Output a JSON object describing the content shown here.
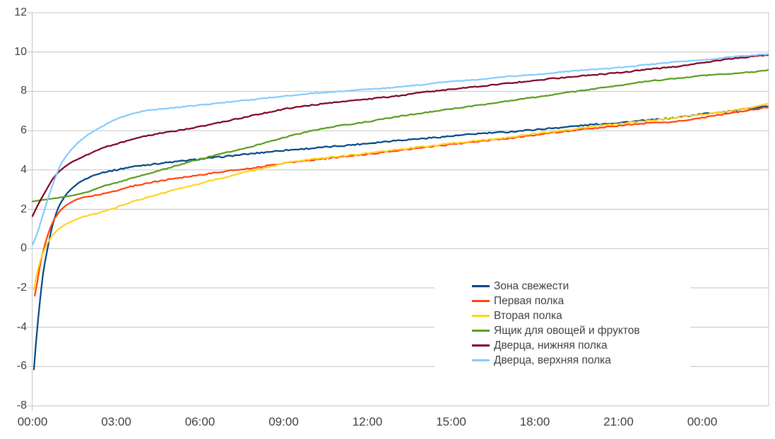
{
  "chart_data": {
    "type": "line",
    "title": "",
    "xlabel": "",
    "ylabel": "",
    "ylim": [
      -8,
      12
    ],
    "y_ticks": [
      12,
      10,
      8,
      6,
      4,
      2,
      0,
      -2,
      -4,
      -6,
      -8
    ],
    "x_tick_labels": [
      "00:00",
      "03:00",
      "06:00",
      "09:00",
      "12:00",
      "15:00",
      "18:00",
      "21:00",
      "00:00"
    ],
    "x_tick_hours": [
      0,
      3,
      6,
      9,
      12,
      15,
      18,
      21,
      24
    ],
    "x_range_hours": [
      0,
      26.35
    ],
    "grid": "horizontal",
    "grid_color": "#c3c3c3",
    "label_color": "#3f3f3f",
    "background": "#ffffff",
    "legend_position": "inside-right-middle",
    "series": [
      {
        "name": "Зона свежести",
        "color": "#004586",
        "points": [
          [
            0.05,
            -6.15
          ],
          [
            0.1,
            -5.2
          ],
          [
            0.2,
            -3.6
          ],
          [
            0.3,
            -2.2
          ],
          [
            0.4,
            -1.0
          ],
          [
            0.5,
            -0.3
          ],
          [
            0.6,
            0.45
          ],
          [
            0.7,
            1.1
          ],
          [
            0.8,
            1.6
          ],
          [
            0.9,
            2.0
          ],
          [
            1.0,
            2.3
          ],
          [
            1.2,
            2.75
          ],
          [
            1.4,
            3.05
          ],
          [
            1.7,
            3.4
          ],
          [
            2.0,
            3.6
          ],
          [
            2.3,
            3.8
          ],
          [
            2.6,
            3.9
          ],
          [
            3.0,
            4.0
          ],
          [
            3.5,
            4.15
          ],
          [
            4.0,
            4.25
          ],
          [
            5.0,
            4.4
          ],
          [
            6.0,
            4.55
          ],
          [
            7.0,
            4.7
          ],
          [
            8.0,
            4.85
          ],
          [
            9.0,
            5.0
          ],
          [
            10.0,
            5.1
          ],
          [
            11.0,
            5.22
          ],
          [
            12.0,
            5.35
          ],
          [
            13.0,
            5.5
          ],
          [
            14.0,
            5.6
          ],
          [
            15.0,
            5.72
          ],
          [
            16.0,
            5.85
          ],
          [
            17.0,
            5.93
          ],
          [
            18.0,
            6.05
          ],
          [
            19.0,
            6.17
          ],
          [
            20.0,
            6.3
          ],
          [
            21.0,
            6.4
          ],
          [
            22.0,
            6.52
          ],
          [
            23.0,
            6.65
          ],
          [
            24.0,
            6.85
          ],
          [
            25.0,
            7.0
          ],
          [
            26.0,
            7.18
          ],
          [
            26.35,
            7.25
          ]
        ]
      },
      {
        "name": "Первая полка",
        "color": "#FF420E",
        "points": [
          [
            0.08,
            -2.4
          ],
          [
            0.15,
            -1.9
          ],
          [
            0.25,
            -1.0
          ],
          [
            0.35,
            -0.3
          ],
          [
            0.5,
            0.5
          ],
          [
            0.65,
            1.1
          ],
          [
            0.8,
            1.55
          ],
          [
            1.0,
            1.95
          ],
          [
            1.2,
            2.2
          ],
          [
            1.5,
            2.45
          ],
          [
            1.8,
            2.6
          ],
          [
            2.2,
            2.7
          ],
          [
            2.6,
            2.8
          ],
          [
            3.0,
            2.95
          ],
          [
            3.5,
            3.15
          ],
          [
            4.0,
            3.3
          ],
          [
            5.0,
            3.55
          ],
          [
            6.0,
            3.75
          ],
          [
            7.0,
            3.95
          ],
          [
            8.0,
            4.12
          ],
          [
            9.0,
            4.35
          ],
          [
            10.0,
            4.5
          ],
          [
            11.0,
            4.65
          ],
          [
            12.0,
            4.8
          ],
          [
            13.0,
            4.97
          ],
          [
            14.0,
            5.13
          ],
          [
            15.0,
            5.3
          ],
          [
            16.0,
            5.45
          ],
          [
            17.0,
            5.6
          ],
          [
            18.0,
            5.78
          ],
          [
            19.0,
            5.95
          ],
          [
            20.0,
            6.1
          ],
          [
            21.0,
            6.25
          ],
          [
            22.0,
            6.38
          ],
          [
            23.0,
            6.45
          ],
          [
            24.0,
            6.65
          ],
          [
            25.0,
            6.9
          ],
          [
            26.0,
            7.1
          ],
          [
            26.35,
            7.2
          ]
        ]
      },
      {
        "name": "Вторая полка",
        "color": "#FFD320",
        "points": [
          [
            0.05,
            -2.1
          ],
          [
            0.15,
            -1.3
          ],
          [
            0.3,
            -0.5
          ],
          [
            0.5,
            0.2
          ],
          [
            0.7,
            0.65
          ],
          [
            0.9,
            0.95
          ],
          [
            1.2,
            1.25
          ],
          [
            1.5,
            1.45
          ],
          [
            1.8,
            1.6
          ],
          [
            2.2,
            1.75
          ],
          [
            2.6,
            1.9
          ],
          [
            3.0,
            2.1
          ],
          [
            3.5,
            2.35
          ],
          [
            4.0,
            2.55
          ],
          [
            4.5,
            2.75
          ],
          [
            5.0,
            2.95
          ],
          [
            5.5,
            3.15
          ],
          [
            6.0,
            3.3
          ],
          [
            6.5,
            3.5
          ],
          [
            7.0,
            3.65
          ],
          [
            7.5,
            3.85
          ],
          [
            8.0,
            4.0
          ],
          [
            8.5,
            4.15
          ],
          [
            9.0,
            4.35
          ],
          [
            10.0,
            4.55
          ],
          [
            11.0,
            4.7
          ],
          [
            12.0,
            4.85
          ],
          [
            13.0,
            5.02
          ],
          [
            14.0,
            5.18
          ],
          [
            15.0,
            5.35
          ],
          [
            16.0,
            5.5
          ],
          [
            17.0,
            5.65
          ],
          [
            18.0,
            5.85
          ],
          [
            19.0,
            6.0
          ],
          [
            20.0,
            6.2
          ],
          [
            21.0,
            6.35
          ],
          [
            22.0,
            6.5
          ],
          [
            23.0,
            6.65
          ],
          [
            24.0,
            6.8
          ],
          [
            25.0,
            7.0
          ],
          [
            26.0,
            7.25
          ],
          [
            26.35,
            7.35
          ]
        ]
      },
      {
        "name": "Ящик для овощей и фруктов",
        "color": "#579D1C",
        "points": [
          [
            0,
            2.4
          ],
          [
            0.5,
            2.5
          ],
          [
            1.0,
            2.6
          ],
          [
            1.5,
            2.72
          ],
          [
            2.0,
            2.9
          ],
          [
            2.6,
            3.2
          ],
          [
            3.0,
            3.35
          ],
          [
            3.5,
            3.55
          ],
          [
            4.0,
            3.75
          ],
          [
            4.5,
            3.95
          ],
          [
            5.0,
            4.15
          ],
          [
            5.7,
            4.45
          ],
          [
            6.0,
            4.55
          ],
          [
            7.0,
            4.9
          ],
          [
            8.0,
            5.25
          ],
          [
            9.0,
            5.65
          ],
          [
            10.0,
            6.0
          ],
          [
            11.0,
            6.25
          ],
          [
            12.0,
            6.45
          ],
          [
            13.0,
            6.7
          ],
          [
            14.0,
            6.9
          ],
          [
            15.0,
            7.1
          ],
          [
            16.0,
            7.3
          ],
          [
            17.0,
            7.5
          ],
          [
            18.0,
            7.7
          ],
          [
            19.0,
            7.9
          ],
          [
            20.0,
            8.1
          ],
          [
            21.0,
            8.3
          ],
          [
            22.0,
            8.5
          ],
          [
            23.0,
            8.65
          ],
          [
            24.0,
            8.8
          ],
          [
            25.0,
            8.9
          ],
          [
            26.0,
            9.0
          ],
          [
            26.35,
            9.08
          ]
        ]
      },
      {
        "name": "Дверца, нижняя полка",
        "color": "#7E0021",
        "points": [
          [
            0,
            1.65
          ],
          [
            0.15,
            2.1
          ],
          [
            0.3,
            2.5
          ],
          [
            0.5,
            3.0
          ],
          [
            0.7,
            3.5
          ],
          [
            0.9,
            3.85
          ],
          [
            1.1,
            4.1
          ],
          [
            1.4,
            4.4
          ],
          [
            1.7,
            4.6
          ],
          [
            2.0,
            4.8
          ],
          [
            2.4,
            5.05
          ],
          [
            2.8,
            5.25
          ],
          [
            3.2,
            5.4
          ],
          [
            3.6,
            5.55
          ],
          [
            4.0,
            5.7
          ],
          [
            4.5,
            5.85
          ],
          [
            5.0,
            5.95
          ],
          [
            6.0,
            6.2
          ],
          [
            7.0,
            6.5
          ],
          [
            8.0,
            6.8
          ],
          [
            9.0,
            7.1
          ],
          [
            10.0,
            7.3
          ],
          [
            11.0,
            7.45
          ],
          [
            12.0,
            7.6
          ],
          [
            13.0,
            7.75
          ],
          [
            14.0,
            7.95
          ],
          [
            15.0,
            8.1
          ],
          [
            16.0,
            8.25
          ],
          [
            17.0,
            8.4
          ],
          [
            18.0,
            8.55
          ],
          [
            19.0,
            8.7
          ],
          [
            20.0,
            8.82
          ],
          [
            21.0,
            8.95
          ],
          [
            22.0,
            9.1
          ],
          [
            23.0,
            9.25
          ],
          [
            24.0,
            9.45
          ],
          [
            25.0,
            9.65
          ],
          [
            26.0,
            9.8
          ],
          [
            26.35,
            9.85
          ]
        ]
      },
      {
        "name": "Дверца, верхняя полка",
        "color": "#83CAFF",
        "points": [
          [
            0,
            0.2
          ],
          [
            0.1,
            0.5
          ],
          [
            0.2,
            0.9
          ],
          [
            0.35,
            1.6
          ],
          [
            0.5,
            2.3
          ],
          [
            0.65,
            2.95
          ],
          [
            0.8,
            3.55
          ],
          [
            1.0,
            4.25
          ],
          [
            1.2,
            4.7
          ],
          [
            1.4,
            5.05
          ],
          [
            1.6,
            5.35
          ],
          [
            1.8,
            5.6
          ],
          [
            2.0,
            5.8
          ],
          [
            2.3,
            6.05
          ],
          [
            2.6,
            6.3
          ],
          [
            3.0,
            6.6
          ],
          [
            3.4,
            6.8
          ],
          [
            3.8,
            6.95
          ],
          [
            4.2,
            7.05
          ],
          [
            4.6,
            7.1
          ],
          [
            5.0,
            7.15
          ],
          [
            6.0,
            7.3
          ],
          [
            7.0,
            7.45
          ],
          [
            8.0,
            7.6
          ],
          [
            9.0,
            7.75
          ],
          [
            10.0,
            7.9
          ],
          [
            11.0,
            8.0
          ],
          [
            12.0,
            8.1
          ],
          [
            13.0,
            8.2
          ],
          [
            14.0,
            8.35
          ],
          [
            15.0,
            8.5
          ],
          [
            16.0,
            8.6
          ],
          [
            17.0,
            8.75
          ],
          [
            18.0,
            8.85
          ],
          [
            19.0,
            9.0
          ],
          [
            20.0,
            9.1
          ],
          [
            21.0,
            9.2
          ],
          [
            22.0,
            9.35
          ],
          [
            23.0,
            9.5
          ],
          [
            24.0,
            9.58
          ],
          [
            25.0,
            9.75
          ],
          [
            26.0,
            9.85
          ],
          [
            26.35,
            9.9
          ]
        ]
      }
    ]
  }
}
